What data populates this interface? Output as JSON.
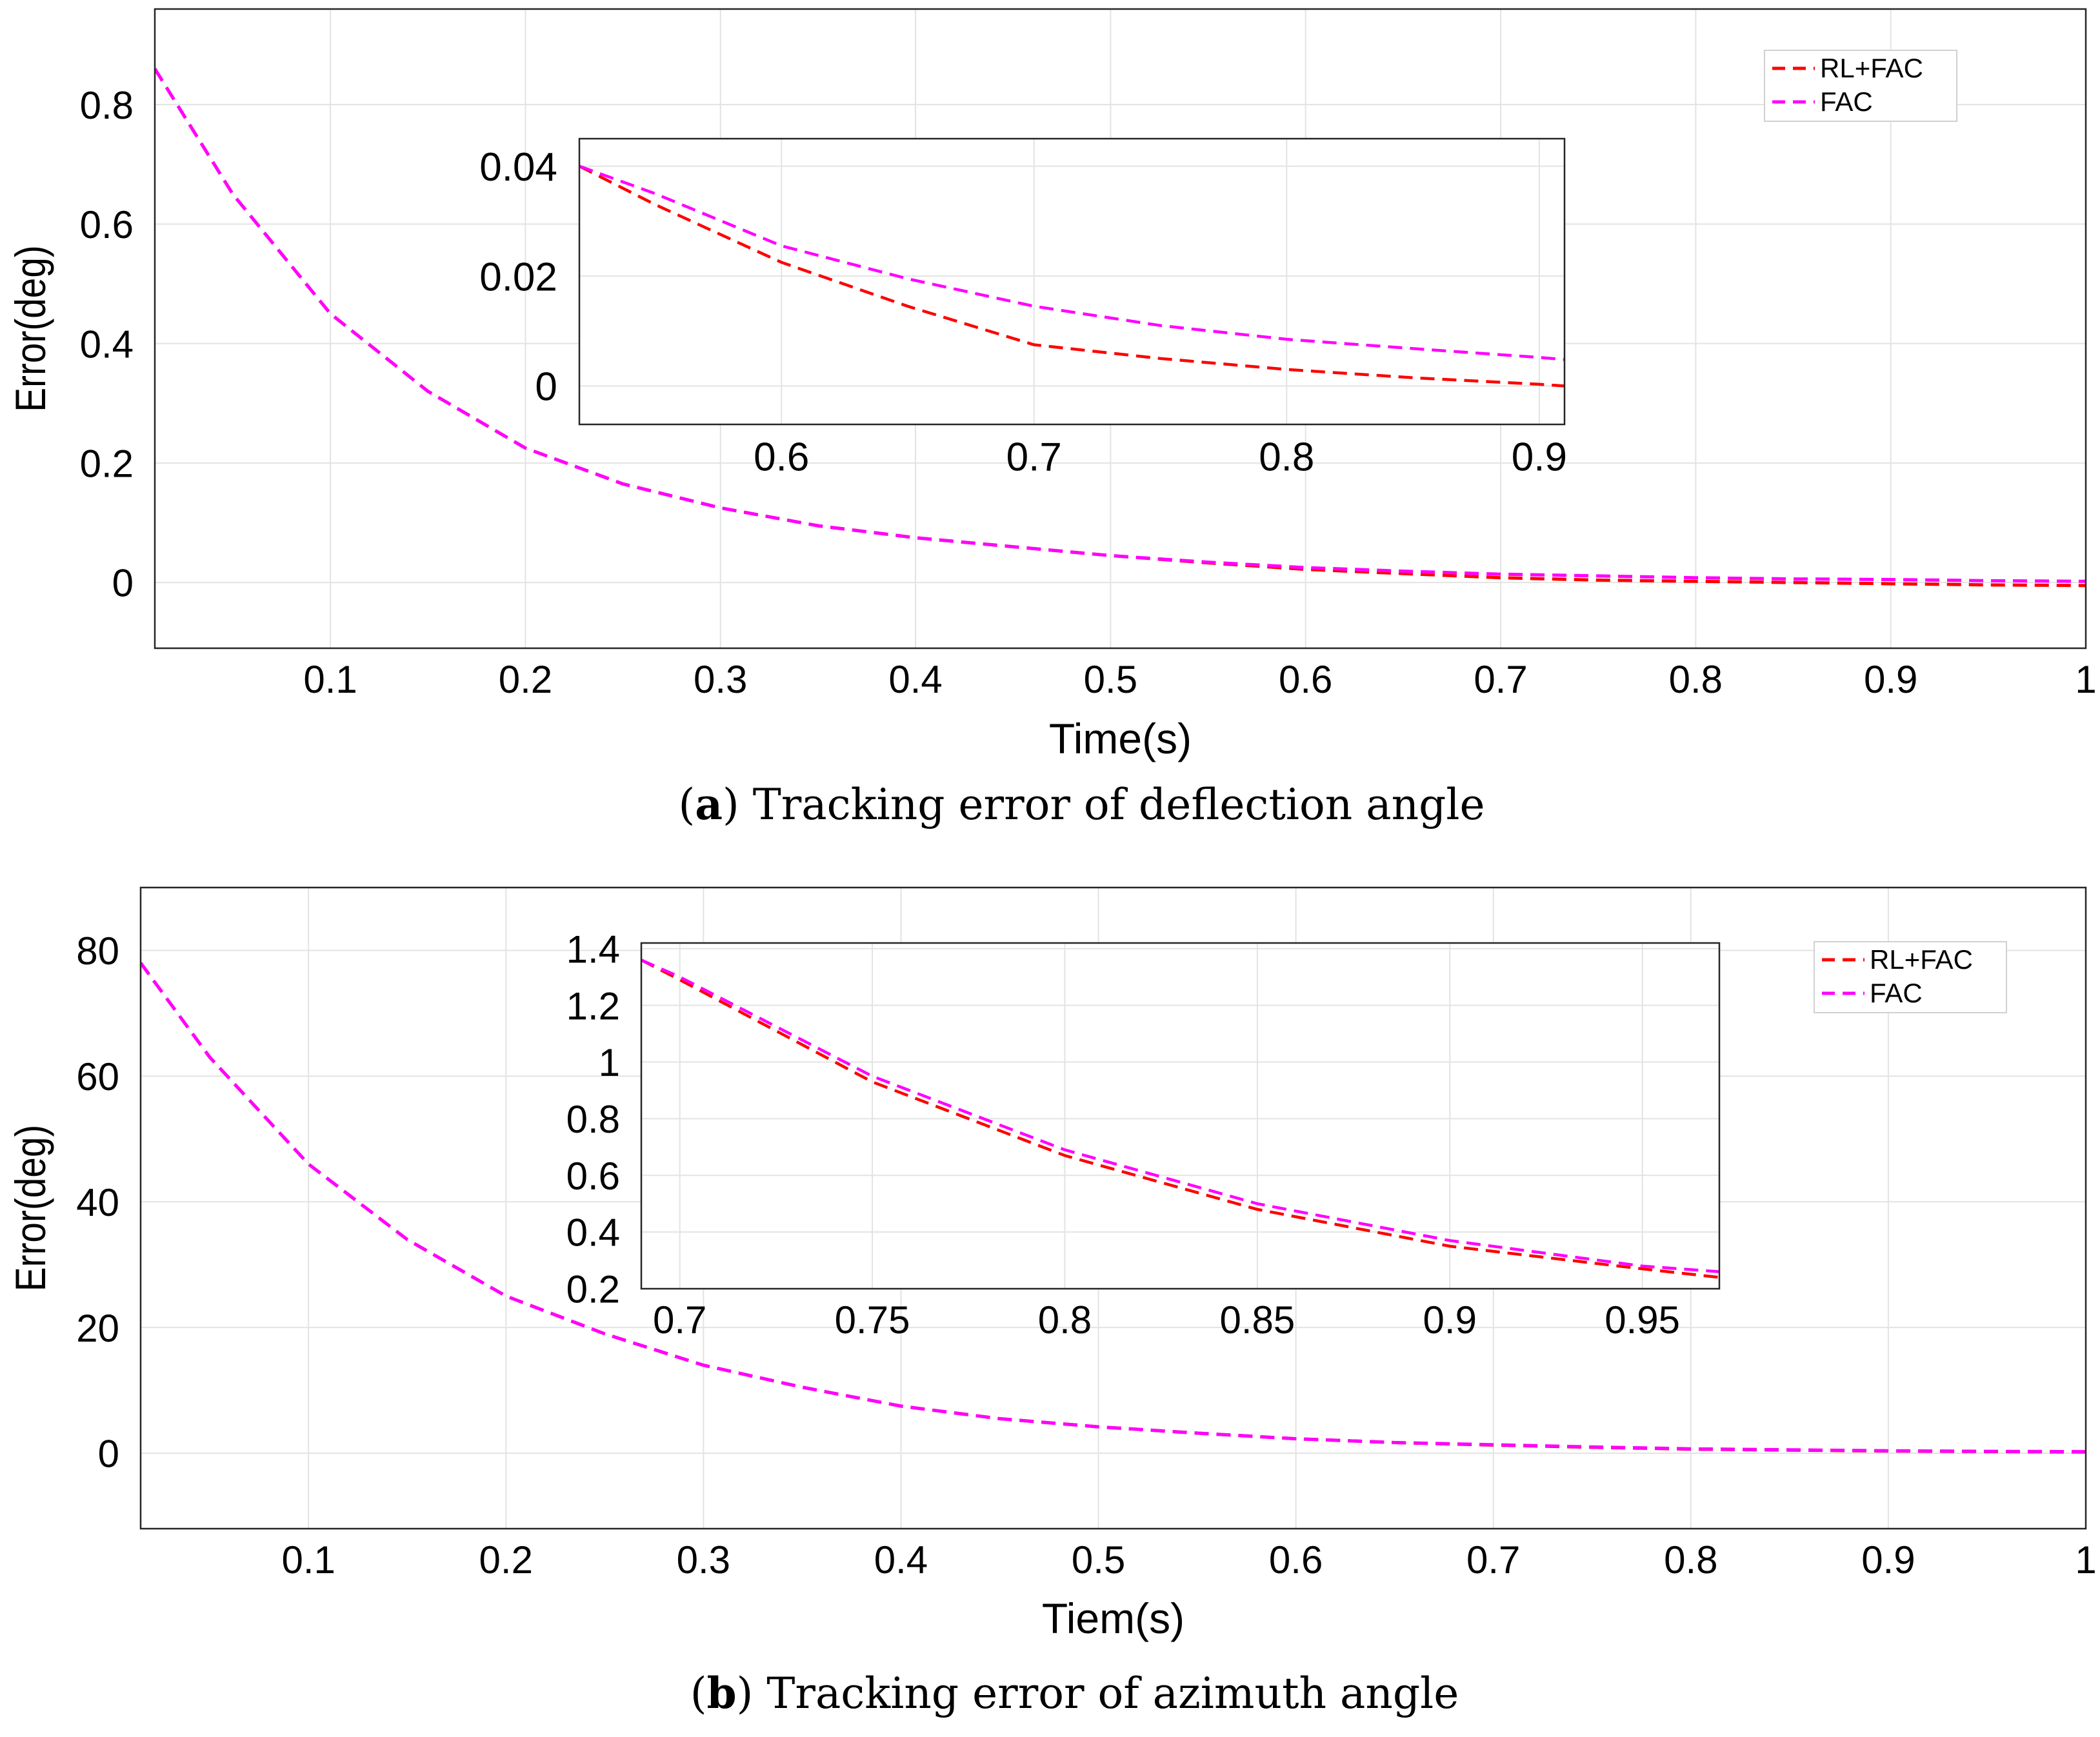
{
  "chart_data": [
    {
      "type": "line",
      "panel": "a",
      "title": "",
      "xlabel": "Time(s)",
      "ylabel": "Error(deg)",
      "xlim": [
        0.01,
        1.0
      ],
      "ylim": [
        -0.11,
        0.96
      ],
      "xticks": [
        0.1,
        0.2,
        0.3,
        0.4,
        0.5,
        0.6,
        0.7,
        0.8,
        0.9,
        1
      ],
      "xtick_labels": [
        "0.1",
        "0.2",
        "0.3",
        "0.4",
        "0.5",
        "0.6",
        "0.7",
        "0.8",
        "0.9",
        "1"
      ],
      "yticks": [
        0,
        0.2,
        0.4,
        0.6,
        0.8
      ],
      "ytick_labels": [
        "0",
        "0.2",
        "0.4",
        "0.6",
        "0.8"
      ],
      "grid": true,
      "legend_position": "top-right",
      "caption": {
        "letter": "a",
        "text": "Tracking error of deflection angle"
      },
      "colors": {
        "RL+FAC": "#ff0000",
        "FAC": "#ff00ff"
      },
      "x": [
        0.01,
        0.05,
        0.1,
        0.15,
        0.2,
        0.25,
        0.3,
        0.35,
        0.4,
        0.45,
        0.5,
        0.55,
        0.6,
        0.65,
        0.7,
        0.75,
        0.8,
        0.85,
        0.9,
        0.95,
        1.0
      ],
      "series": [
        {
          "name": "RL+FAC",
          "values": [
            0.86,
            0.65,
            0.45,
            0.32,
            0.225,
            0.165,
            0.125,
            0.095,
            0.075,
            0.06,
            0.045,
            0.033,
            0.022,
            0.015,
            0.008,
            0.004,
            0.002,
            0.0,
            -0.002,
            -0.004,
            -0.005
          ]
        },
        {
          "name": "FAC",
          "values": [
            0.86,
            0.65,
            0.45,
            0.32,
            0.225,
            0.165,
            0.125,
            0.095,
            0.075,
            0.06,
            0.045,
            0.034,
            0.025,
            0.019,
            0.014,
            0.011,
            0.008,
            0.006,
            0.005,
            0.003,
            0.002
          ]
        }
      ],
      "inset": {
        "xlim": [
          0.52,
          0.91
        ],
        "ylim": [
          -0.007,
          0.045
        ],
        "xticks": [
          0.6,
          0.7,
          0.8,
          0.9
        ],
        "xtick_labels": [
          "0.6",
          "0.7",
          "0.8",
          "0.9"
        ],
        "yticks": [
          0,
          0.02,
          0.04
        ],
        "ytick_labels": [
          "0",
          "0.02",
          "0.04"
        ],
        "x": [
          0.52,
          0.55,
          0.6,
          0.65,
          0.7,
          0.75,
          0.8,
          0.85,
          0.9,
          0.91
        ],
        "series": [
          {
            "name": "RL+FAC",
            "values": [
              0.04,
              0.033,
              0.0225,
              0.0145,
              0.0075,
              0.005,
              0.003,
              0.0015,
              0.0003,
              0.0
            ]
          },
          {
            "name": "FAC",
            "values": [
              0.04,
              0.035,
              0.0255,
              0.0195,
              0.0145,
              0.011,
              0.0085,
              0.0068,
              0.0052,
              0.0048
            ]
          }
        ]
      }
    },
    {
      "type": "line",
      "panel": "b",
      "title": "",
      "xlabel": "Tiem(s)",
      "ylabel": "Error(deg)",
      "xlim": [
        0.015,
        1.0
      ],
      "ylim": [
        -12,
        90
      ],
      "xticks": [
        0.1,
        0.2,
        0.3,
        0.4,
        0.5,
        0.6,
        0.7,
        0.8,
        0.9,
        1
      ],
      "xtick_labels": [
        "0.1",
        "0.2",
        "0.3",
        "0.4",
        "0.5",
        "0.6",
        "0.7",
        "0.8",
        "0.9",
        "1"
      ],
      "yticks": [
        0,
        20,
        40,
        60,
        80
      ],
      "ytick_labels": [
        "0",
        "20",
        "40",
        "60",
        "80"
      ],
      "grid": true,
      "legend_position": "top-right",
      "caption": {
        "letter": "b",
        "text": "Tracking error of azimuth angle"
      },
      "colors": {
        "RL+FAC": "#ff0000",
        "FAC": "#ff00ff"
      },
      "x": [
        0.015,
        0.05,
        0.1,
        0.15,
        0.2,
        0.25,
        0.3,
        0.35,
        0.4,
        0.45,
        0.5,
        0.55,
        0.6,
        0.65,
        0.7,
        0.75,
        0.8,
        0.85,
        0.9,
        0.95,
        1.0
      ],
      "series": [
        {
          "name": "RL+FAC",
          "values": [
            78,
            63,
            46,
            34,
            25,
            19,
            14,
            10.5,
            7.5,
            5.5,
            4.2,
            3.2,
            2.3,
            1.7,
            1.3,
            0.95,
            0.65,
            0.5,
            0.35,
            0.27,
            0.2
          ]
        },
        {
          "name": "FAC",
          "values": [
            78,
            63,
            46,
            34,
            25,
            19,
            14,
            10.5,
            7.5,
            5.5,
            4.2,
            3.2,
            2.3,
            1.7,
            1.35,
            1.0,
            0.7,
            0.55,
            0.4,
            0.3,
            0.25
          ]
        }
      ],
      "inset": {
        "xlim": [
          0.69,
          0.97
        ],
        "ylim": [
          0.2,
          1.42
        ],
        "xticks": [
          0.7,
          0.75,
          0.8,
          0.85,
          0.9,
          0.95
        ],
        "xtick_labels": [
          "0.7",
          "0.75",
          "0.8",
          "0.85",
          "0.9",
          "0.95"
        ],
        "yticks": [
          0.2,
          0.4,
          0.6,
          0.8,
          1,
          1.2,
          1.4
        ],
        "ytick_labels": [
          "0.2",
          "0.4",
          "0.6",
          "0.8",
          "1",
          "1.2",
          "1.4"
        ],
        "x": [
          0.69,
          0.7,
          0.75,
          0.8,
          0.85,
          0.9,
          0.95,
          0.97
        ],
        "series": [
          {
            "name": "RL+FAC",
            "values": [
              1.36,
              1.29,
              0.93,
              0.67,
              0.48,
              0.35,
              0.27,
              0.24
            ]
          },
          {
            "name": "FAC",
            "values": [
              1.36,
              1.3,
              0.95,
              0.69,
              0.5,
              0.37,
              0.28,
              0.26
            ]
          }
        ]
      }
    }
  ]
}
